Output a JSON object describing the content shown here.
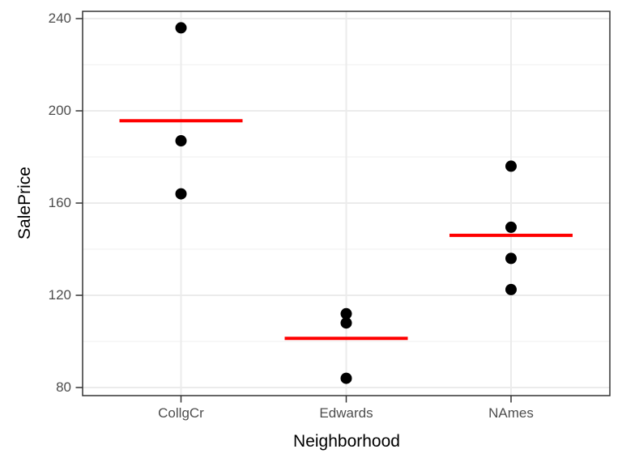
{
  "chart_data": {
    "type": "scatter",
    "title": "",
    "xlabel": "Neighborhood",
    "ylabel": "SalePrice",
    "categories": [
      "CollgCr",
      "Edwards",
      "NAmes"
    ],
    "series": [
      {
        "name": "CollgCr",
        "values": [
          236,
          187,
          164
        ],
        "mean": 195.7
      },
      {
        "name": "Edwards",
        "values": [
          112,
          108,
          84
        ],
        "mean": 101.3
      },
      {
        "name": "NAmes",
        "values": [
          176,
          149.5,
          136,
          122.5
        ],
        "mean": 146
      }
    ],
    "y_axis": {
      "ticks": [
        240,
        200,
        160,
        120,
        80
      ],
      "minor_ticks": [
        220,
        180,
        140,
        100
      ],
      "ylim": [
        76.5,
        243.2
      ]
    },
    "legend": "none",
    "grid": "on",
    "colors": {
      "point": "#000000",
      "mean_line": "#ff0000",
      "grid_major": "#ebebeb",
      "grid_minor": "#efefef",
      "panel_border": "#333333",
      "tick_mark": "#333333",
      "axis_text": "#4d4d4d",
      "axis_title": "#000000",
      "panel_background": "#ffffff"
    }
  }
}
